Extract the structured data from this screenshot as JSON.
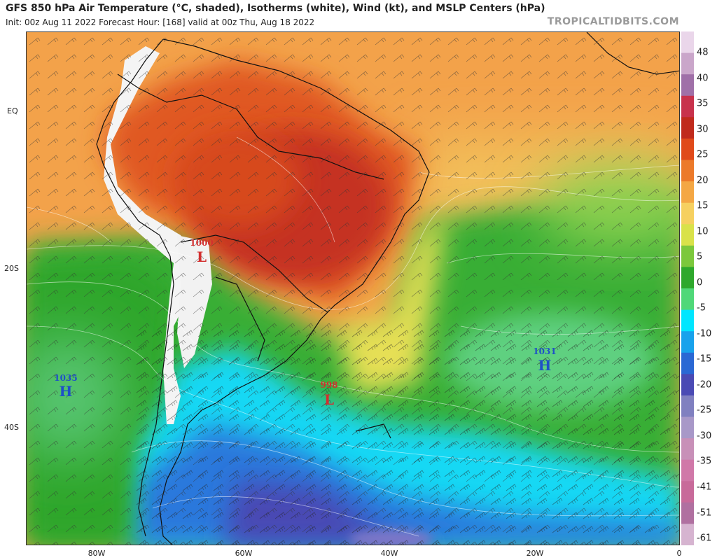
{
  "header": {
    "title": "GFS 850 hPa Air Temperature (°C, shaded), Isotherms (white), Wind (kt), and MSLP Centers (hPa)",
    "subtitle": "Init: 00z Aug 11 2022   Forecast Hour: [168]   valid at 00z Thu, Aug 18 2022",
    "credit": "TROPICALTIDBITS.COM"
  },
  "axes": {
    "lat_labels": [
      "EQ",
      "20S",
      "40S"
    ],
    "lon_labels": [
      "80W",
      "60W",
      "40W",
      "20W",
      "0"
    ]
  },
  "pressure_centers": [
    {
      "type": "L",
      "value": "1000",
      "color": "#d32f2f"
    },
    {
      "type": "L",
      "value": "998",
      "color": "#d32f2f"
    },
    {
      "type": "H",
      "value": "1035",
      "color": "#1e50c8"
    },
    {
      "type": "H",
      "value": "1031",
      "color": "#1e50c8"
    }
  ],
  "colorbar": {
    "ticks": [
      "48",
      "40",
      "35",
      "30",
      "25",
      "20",
      "15",
      "10",
      "5",
      "0",
      "-5",
      "-10",
      "-15",
      "-20",
      "-25",
      "-30",
      "-35",
      "-41",
      "-51",
      "-61"
    ],
    "colors": [
      "#ead6ea",
      "#caa6ca",
      "#a070a8",
      "#c8324c",
      "#c02a1c",
      "#e04a1a",
      "#ec7a2a",
      "#f4a744",
      "#f6d060",
      "#d9e24a",
      "#7cc83c",
      "#2ea82c",
      "#50d878",
      "#00e6ff",
      "#18a2ec",
      "#2a68d4",
      "#4a4ab4",
      "#8080c0",
      "#a898c8",
      "#c890b8",
      "#d078a8",
      "#c86a9a",
      "#b070a0",
      "#d6b4d0"
    ]
  }
}
